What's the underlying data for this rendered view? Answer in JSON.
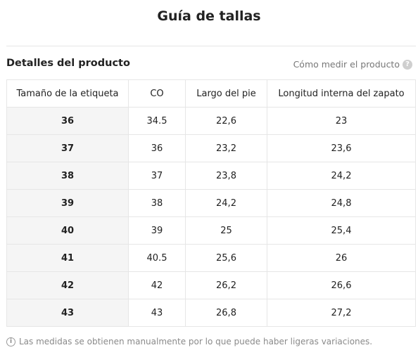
{
  "header": {
    "title": "Guía de tallas"
  },
  "section": {
    "title": "Detalles del producto",
    "how_to_measure": "Cómo medir el producto",
    "help_icon": "question-circle-icon"
  },
  "table": {
    "headers": [
      "Tamaño de la etiqueta",
      "CO",
      "Largo del pie",
      "Longitud interna del zapato"
    ],
    "rows": [
      [
        "36",
        "34.5",
        "22,6",
        "23"
      ],
      [
        "37",
        "36",
        "23,2",
        "23,6"
      ],
      [
        "38",
        "37",
        "23,8",
        "24,2"
      ],
      [
        "39",
        "38",
        "24,2",
        "24,8"
      ],
      [
        "40",
        "39",
        "25",
        "25,4"
      ],
      [
        "41",
        "40.5",
        "25,6",
        "26"
      ],
      [
        "42",
        "42",
        "26,2",
        "26,6"
      ],
      [
        "43",
        "43",
        "26,8",
        "27,2"
      ]
    ]
  },
  "footer": {
    "note": "Las medidas se obtienen manualmente por lo que puede haber ligeras variaciones.",
    "info_icon": "info-circle-icon"
  }
}
